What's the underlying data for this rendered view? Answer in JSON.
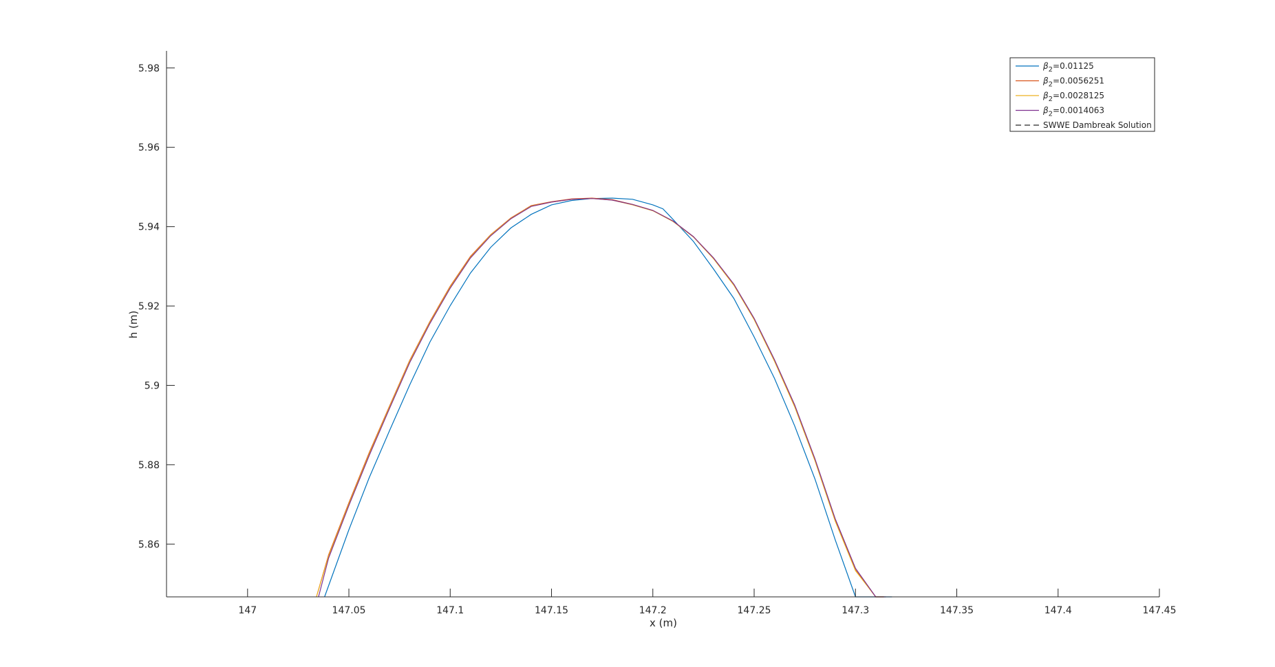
{
  "chart_data": {
    "type": "line",
    "title": "",
    "xlabel": "x (m)",
    "ylabel": "h (m)",
    "xlim": [
      146.96,
      147.45
    ],
    "ylim": [
      5.8467,
      5.9843
    ],
    "xticks": [
      147,
      147.05,
      147.1,
      147.15,
      147.2,
      147.25,
      147.3,
      147.35,
      147.4,
      147.45
    ],
    "xtick_labels": [
      "147",
      "147.05",
      "147.1",
      "147.15",
      "147.2",
      "147.25",
      "147.3",
      "147.35",
      "147.4",
      "147.45"
    ],
    "yticks": [
      5.86,
      5.88,
      5.9,
      5.92,
      5.94,
      5.96,
      5.98
    ],
    "ytick_labels": [
      "5.86",
      "5.88",
      "5.9",
      "5.92",
      "5.94",
      "5.96",
      "5.98"
    ],
    "grid": false,
    "legend_position": "top-right",
    "series": [
      {
        "name": "β₂=0.01125",
        "legend_sub": "2",
        "legend_value": "=0.01125",
        "color": "#0072BD",
        "dash": "solid",
        "x": [
          147.038,
          147.05,
          147.06,
          147.07,
          147.08,
          147.09,
          147.1,
          147.11,
          147.12,
          147.13,
          147.14,
          147.15,
          147.16,
          147.17,
          147.18,
          147.19,
          147.2,
          147.205,
          147.21,
          147.22,
          147.23,
          147.24,
          147.25,
          147.26,
          147.27,
          147.28,
          147.29,
          147.3,
          147.31,
          147.318
        ],
        "y": [
          5.8467,
          5.8636,
          5.8767,
          5.8885,
          5.9001,
          5.9109,
          5.9201,
          5.9283,
          5.9348,
          5.9397,
          5.9431,
          5.9455,
          5.9466,
          5.9471,
          5.9472,
          5.9469,
          5.9455,
          5.9445,
          5.9418,
          5.9363,
          5.9293,
          5.9219,
          5.9122,
          5.9018,
          5.8898,
          5.8764,
          5.8611,
          5.8467,
          5.8467,
          5.8467
        ]
      },
      {
        "name": "β₂=0.0056251",
        "legend_sub": "2",
        "legend_value": "=0.0056251",
        "color": "#D95319",
        "dash": "solid",
        "x": [
          147.034,
          147.04,
          147.05,
          147.06,
          147.07,
          147.08,
          147.09,
          147.1,
          147.11,
          147.12,
          147.13,
          147.14,
          147.15,
          147.16,
          147.17,
          147.18,
          147.19,
          147.2,
          147.21,
          147.22,
          147.23,
          147.24,
          147.25,
          147.26,
          147.27,
          147.28,
          147.29,
          147.3,
          147.31,
          147.314
        ],
        "y": [
          5.8467,
          5.8573,
          5.8704,
          5.883,
          5.8947,
          5.9063,
          5.9161,
          5.925,
          5.9325,
          5.938,
          5.9422,
          5.9453,
          5.9463,
          5.947,
          5.9472,
          5.9468,
          5.9456,
          5.9441,
          5.9414,
          5.9375,
          5.932,
          5.9254,
          5.9168,
          5.9063,
          5.8948,
          5.8812,
          5.866,
          5.8535,
          5.8467,
          5.8467
        ]
      },
      {
        "name": "β₂=0.0028125",
        "legend_sub": "2",
        "legend_value": "=0.0028125",
        "color": "#EDB120",
        "dash": "solid",
        "x": [
          147.034,
          147.04,
          147.05,
          147.06,
          147.07,
          147.08,
          147.09,
          147.1,
          147.11,
          147.12,
          147.13,
          147.14,
          147.15,
          147.16,
          147.17,
          147.18,
          147.19,
          147.2,
          147.21,
          147.22,
          147.23,
          147.24,
          147.25,
          147.26,
          147.27,
          147.28,
          147.29,
          147.3,
          147.31,
          147.314
        ],
        "y": [
          5.8467,
          5.857,
          5.8701,
          5.8827,
          5.8945,
          5.9061,
          5.9159,
          5.9248,
          5.9323,
          5.9379,
          5.9421,
          5.9452,
          5.9462,
          5.9469,
          5.9471,
          5.9467,
          5.9455,
          5.944,
          5.9413,
          5.9374,
          5.9319,
          5.9252,
          5.9166,
          5.9061,
          5.8946,
          5.881,
          5.8658,
          5.8533,
          5.8467,
          5.8467
        ]
      },
      {
        "name": "β₂=0.0014063",
        "legend_sub": "2",
        "legend_value": "=0.0014063",
        "color": "#7E2F8E",
        "dash": "solid",
        "x": [
          147.035,
          147.04,
          147.05,
          147.06,
          147.07,
          147.08,
          147.09,
          147.1,
          147.11,
          147.12,
          147.13,
          147.14,
          147.15,
          147.16,
          147.17,
          147.18,
          147.19,
          147.2,
          147.21,
          147.22,
          147.23,
          147.24,
          147.25,
          147.26,
          147.27,
          147.28,
          147.29,
          147.3,
          147.31,
          147.315
        ],
        "y": [
          5.8467,
          5.8565,
          5.8697,
          5.8823,
          5.8941,
          5.9057,
          5.9156,
          5.9245,
          5.9321,
          5.9377,
          5.942,
          5.9451,
          5.9462,
          5.9469,
          5.9471,
          5.9467,
          5.9456,
          5.9441,
          5.9414,
          5.9375,
          5.9321,
          5.9255,
          5.9169,
          5.9065,
          5.8951,
          5.8815,
          5.8664,
          5.8539,
          5.8467,
          5.8467
        ]
      },
      {
        "name": "SWWE Dambreak Solution",
        "legend_sub": "",
        "legend_value": "SWWE Dambreak Solution",
        "color": "#262626",
        "dash": "dashed",
        "x": [],
        "y": []
      }
    ]
  }
}
